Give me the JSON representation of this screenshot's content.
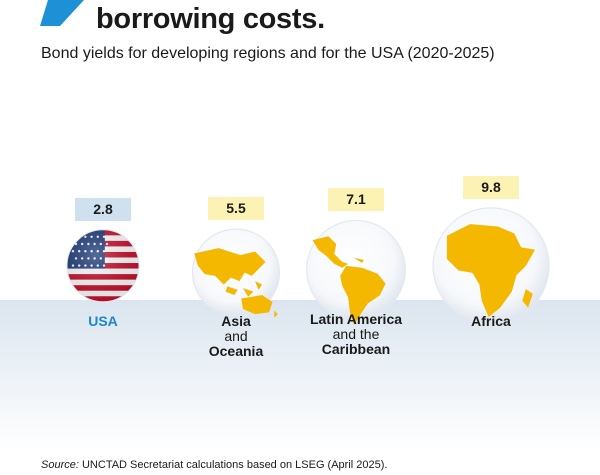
{
  "title": "borrowing costs.",
  "subtitle": "Bond yields for developing regions and for the USA (2020-2025)",
  "source": {
    "label": "Source:",
    "text": "UNCTAD Secretariat calculations based on LSEG (April 2025)."
  },
  "colors": {
    "accent": "#1e90d6",
    "usa_label": "#1a88cf",
    "usa_value_box": "#cfe0ef",
    "region_value_box": "#fbf2b4",
    "map_fill": "#f5b800",
    "band": "#dde6ef"
  },
  "chart_data": {
    "type": "bubble",
    "title": "Bond yields for developing regions and for the USA (2020-2025)",
    "categories": [
      "USA",
      "Asia and Oceania",
      "Latin America and the Caribbean",
      "Africa"
    ],
    "values": [
      2.8,
      5.5,
      7.1,
      9.8
    ],
    "value_labels": [
      "2.8",
      "5.5",
      "7.1",
      "9.8"
    ],
    "labels": [
      {
        "line1": "USA",
        "line2": "",
        "line3": ""
      },
      {
        "line1": "Asia",
        "line2": "and",
        "line3": "Oceania"
      },
      {
        "line1": "Latin America",
        "line2": "and the",
        "line3": "Caribbean"
      },
      {
        "line1": "Africa",
        "line2": "",
        "line3": ""
      }
    ],
    "icons": [
      "usa-flag-icon",
      "asia-oceania-map-icon",
      "latin-america-map-icon",
      "africa-map-icon"
    ]
  }
}
